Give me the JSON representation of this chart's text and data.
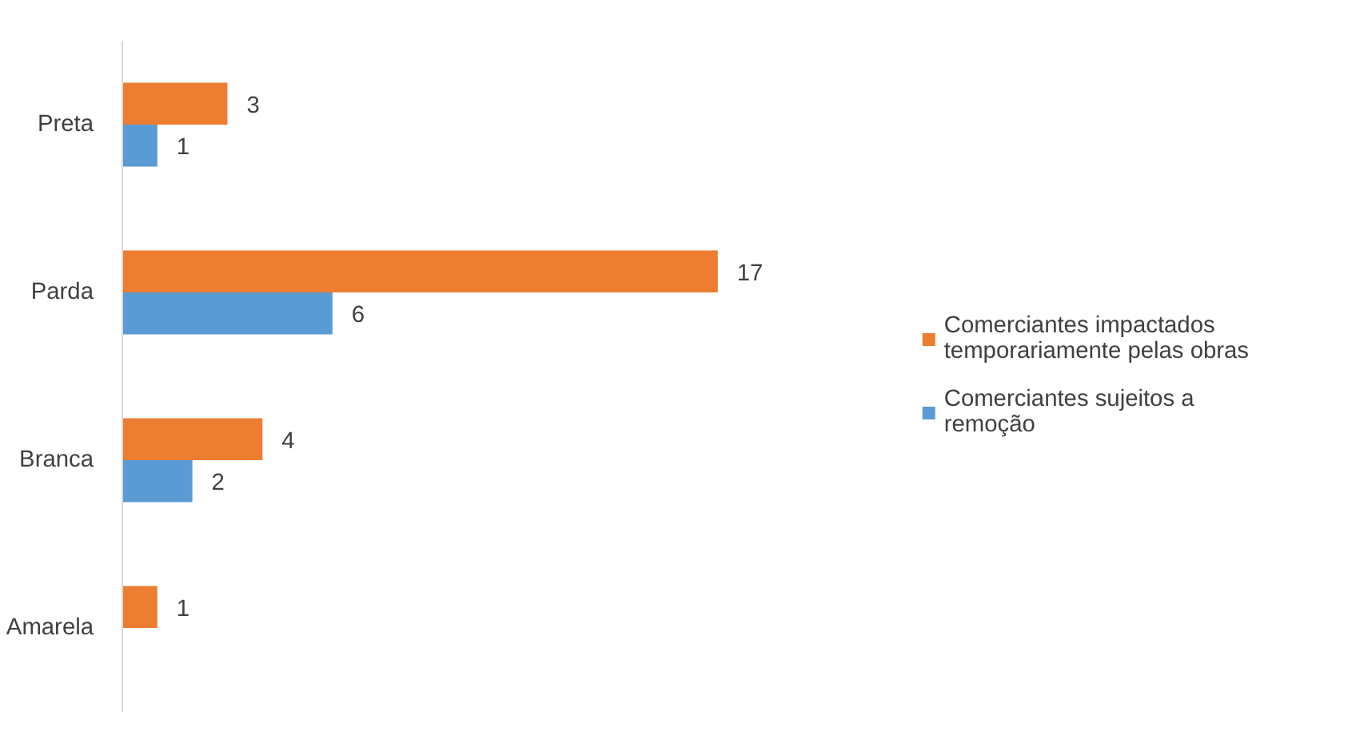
{
  "chart_data": {
    "type": "bar",
    "orientation": "horizontal",
    "categories": [
      "Preta",
      "Parda",
      "Branca",
      "Amarela"
    ],
    "series": [
      {
        "name": "Comerciantes impactados temporariamente pelas obras",
        "color": "#ed7d31",
        "values": [
          3,
          17,
          4,
          1
        ]
      },
      {
        "name": "Comerciantes sujeitos a remoção",
        "color": "#5b9bd5",
        "values": [
          1,
          6,
          2,
          null
        ]
      }
    ],
    "data_labels": true,
    "legend": "right",
    "grid": false
  }
}
